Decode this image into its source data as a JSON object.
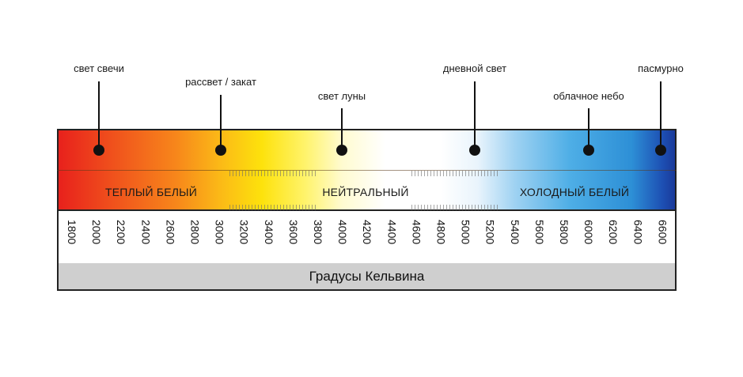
{
  "markers": [
    {
      "label": "свет свечи",
      "kelvin": 1900
    },
    {
      "label": "рассвет / закат",
      "kelvin": 2900
    },
    {
      "label": "свет луны",
      "kelvin": 4000
    },
    {
      "label": "дневной свет",
      "kelvin": 5000
    },
    {
      "label": "облачное небо",
      "kelvin": 6000
    },
    {
      "label": "пасмурно",
      "kelvin": 6600
    }
  ],
  "zones": {
    "warm": "ТЕПЛЫЙ БЕЛЫЙ",
    "neutral": "НЕЙТРАЛЬНЫЙ",
    "cold": "ХОЛОДНЫЙ БЕЛЫЙ"
  },
  "scale_ticks": [
    "1800",
    "2000",
    "2200",
    "2400",
    "2600",
    "2800",
    "3000",
    "3200",
    "3400",
    "3600",
    "3800",
    "4000",
    "4200",
    "4400",
    "4600",
    "4800",
    "5000",
    "5200",
    "5400",
    "5600",
    "5800",
    "6000",
    "6200",
    "6400",
    "6600"
  ],
  "footer_label": "Градусы Кельвина",
  "colors": {
    "warm_red": "#e8211c",
    "orange": "#f7861b",
    "yellow": "#fde20c",
    "neutral_white": "#ffffff",
    "sky_blue": "#4eaee6",
    "deep_blue": "#1a3a9a",
    "footer_gray": "#cfcfcf"
  }
}
